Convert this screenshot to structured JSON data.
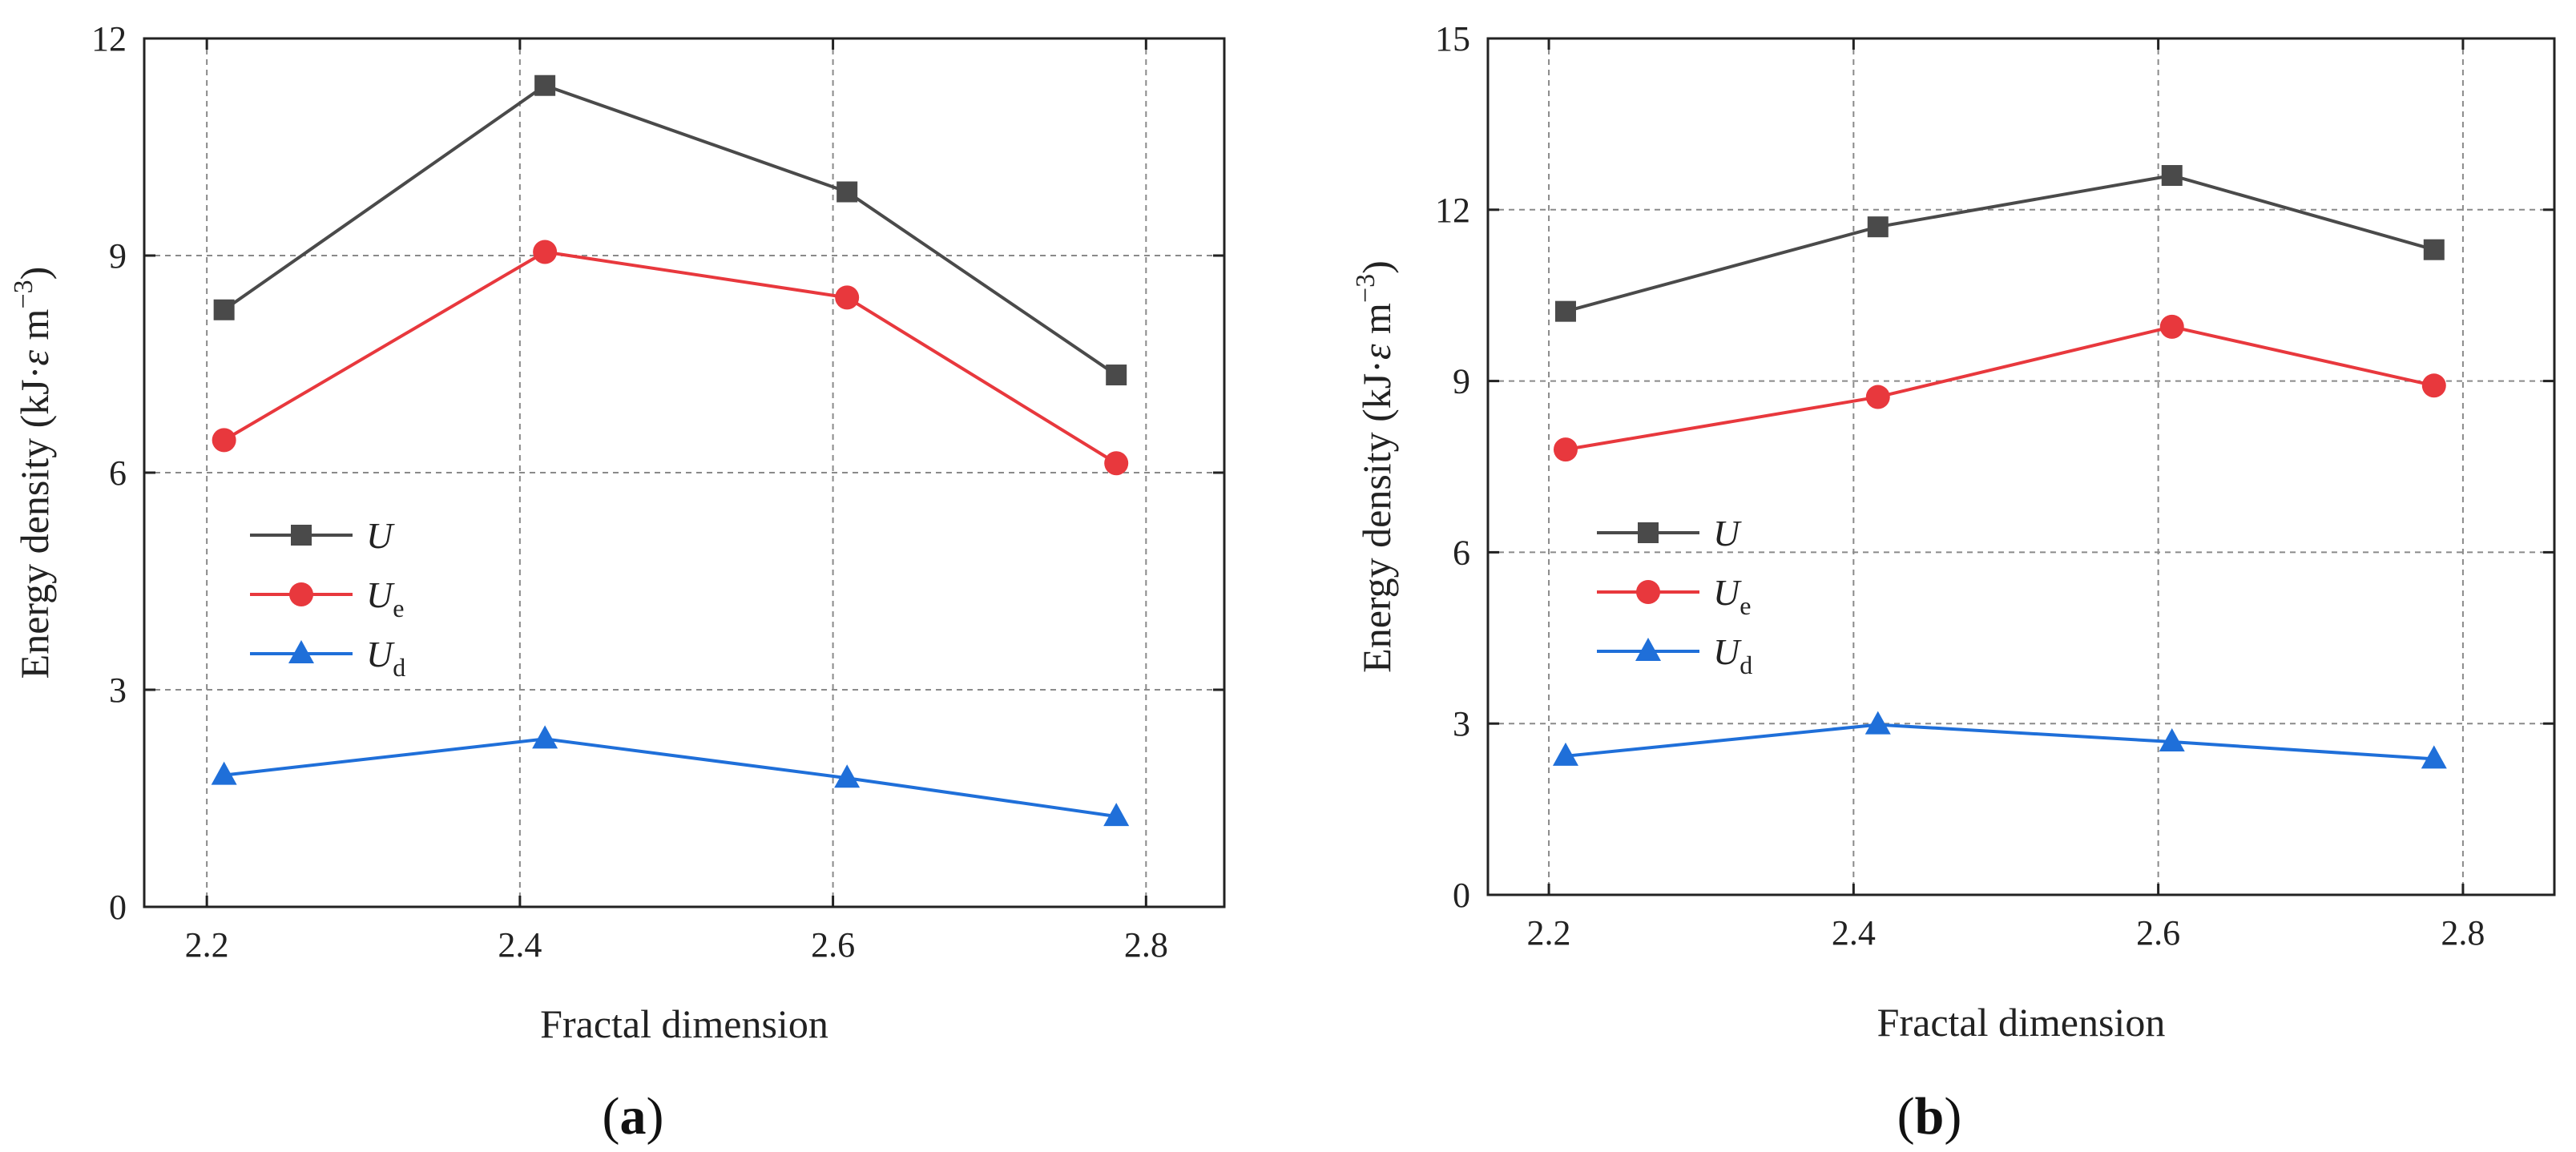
{
  "chart_data": [
    {
      "panel": "a",
      "type": "line",
      "xlabel": "Fractal dimension",
      "ylabel": "Energy density (kJ·ε m−3)",
      "ylabel_main": "Energy density (kJ·",
      "ylabel_epsilon": "ε",
      "ylabel_unit": " m",
      "ylabel_exp": "−3",
      "ylabel_close": ")",
      "xlim": [
        2.16,
        2.85
      ],
      "ylim": [
        0,
        12
      ],
      "xticks": [
        2.2,
        2.4,
        2.6,
        2.8
      ],
      "xtick_labels": [
        "2.2",
        "2.4",
        "2.6",
        "2.8"
      ],
      "yticks": [
        0,
        3,
        6,
        9,
        12
      ],
      "ytick_labels": [
        "0",
        "3",
        "6",
        "9",
        "12"
      ],
      "grid": true,
      "legend_position": "middle-left",
      "x": [
        2.211,
        2.416,
        2.609,
        2.781
      ],
      "series": [
        {
          "name": "U",
          "base": "U",
          "sub": "",
          "color": "#4a4a4a",
          "marker": "square",
          "values": [
            8.25,
            11.35,
            9.88,
            7.35
          ]
        },
        {
          "name": "Ue",
          "base": "U",
          "sub": "e",
          "color": "#e8383d",
          "marker": "circle",
          "values": [
            6.45,
            9.05,
            8.42,
            6.13
          ]
        },
        {
          "name": "Ud",
          "base": "U",
          "sub": "d",
          "color": "#1f6fd9",
          "marker": "triangle",
          "values": [
            1.82,
            2.32,
            1.78,
            1.25
          ]
        }
      ]
    },
    {
      "panel": "b",
      "type": "line",
      "xlabel": "Fractal dimension",
      "ylabel": "Energy density (kJ·ε m−3)",
      "ylabel_main": "Energy density (kJ·",
      "ylabel_epsilon": "ε",
      "ylabel_unit": " m",
      "ylabel_exp": "−3",
      "ylabel_close": ")",
      "xlim": [
        2.16,
        2.86
      ],
      "ylim": [
        0,
        15
      ],
      "xticks": [
        2.2,
        2.4,
        2.6,
        2.8
      ],
      "xtick_labels": [
        "2.2",
        "2.4",
        "2.6",
        "2.8"
      ],
      "yticks": [
        0,
        3,
        6,
        9,
        12,
        15
      ],
      "ytick_labels": [
        "0",
        "3",
        "6",
        "9",
        "12",
        "15"
      ],
      "grid": true,
      "legend_position": "middle-left",
      "x": [
        2.211,
        2.416,
        2.609,
        2.781
      ],
      "series": [
        {
          "name": "U",
          "base": "U",
          "sub": "",
          "color": "#4a4a4a",
          "marker": "square",
          "values": [
            10.22,
            11.7,
            12.6,
            11.3
          ]
        },
        {
          "name": "Ue",
          "base": "U",
          "sub": "e",
          "color": "#e8383d",
          "marker": "circle",
          "values": [
            7.8,
            8.72,
            9.95,
            8.92
          ]
        },
        {
          "name": "Ud",
          "base": "U",
          "sub": "d",
          "color": "#1f6fd9",
          "marker": "triangle",
          "values": [
            2.43,
            2.98,
            2.68,
            2.38
          ]
        }
      ]
    }
  ],
  "panel_labels": [
    {
      "open": "(",
      "letter": "a",
      "close": ")"
    },
    {
      "open": "(",
      "letter": "b",
      "close": ")"
    }
  ]
}
